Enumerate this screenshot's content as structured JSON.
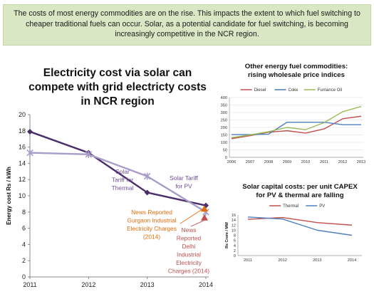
{
  "banner": {
    "text": "The costs of most energy commodities are on the rise. This impacts the extent to which fuel switching to cheaper traditional fuels can occur. Solar, as a potential candidate for fuel switching, is becoming increasingly competitive in the NCR region."
  },
  "chart_data": [
    {
      "type": "line",
      "title": [
        "Electricity cost via solar can",
        "compete with grid electricty costs",
        "in NCR region"
      ],
      "ylabel": "Energy cost Rs / kWh",
      "xlabel": "",
      "x": [
        "2011",
        "2012",
        "2013",
        "2014"
      ],
      "ylim": [
        0,
        20
      ],
      "yticks": [
        0,
        2,
        4,
        6,
        8,
        10,
        12,
        14,
        16,
        18,
        20
      ],
      "grid": false,
      "series": [
        {
          "key": "thermal",
          "values": [
            17.9,
            15.3,
            10.4,
            8.8
          ],
          "color": "#4a2d6b",
          "marker": "diamond"
        },
        {
          "key": "pv",
          "values": [
            15.3,
            15.1,
            12.4,
            8.0
          ],
          "color": "#a89cc8",
          "marker": "star"
        }
      ],
      "points": [
        {
          "key": "gurgaon",
          "x": "2014",
          "y": 8.4,
          "color": "#e46c0a",
          "marker": "triangle"
        },
        {
          "key": "delhi",
          "x": "2014",
          "y": 7.3,
          "color": "#c0504d",
          "marker": "triangle"
        }
      ],
      "annotations": [
        {
          "key": "solar_thermal",
          "lines": [
            "Solar",
            "Tariff for",
            "Thermal"
          ],
          "color": "#6f4a9e"
        },
        {
          "key": "solar_pv",
          "lines": [
            "Solar Tariff",
            "for PV"
          ],
          "color": "#6f4a9e"
        },
        {
          "key": "gurgaon",
          "lines": [
            "News Reported",
            "Gurgaon Industrial",
            "Electricity Charges",
            "(2014)"
          ],
          "color": "#e46c0a"
        },
        {
          "key": "delhi",
          "lines": [
            "News",
            "Reported",
            "Delhi",
            "Industrial",
            "Electricity",
            "Charges (2014)"
          ],
          "color": "#c0504d"
        }
      ]
    },
    {
      "type": "line",
      "title": [
        "Other energy fuel commodities:",
        "rising wholesale price indices"
      ],
      "x": [
        "2006",
        "2007",
        "2008",
        "2009",
        "2010",
        "2011",
        "2012",
        "2013"
      ],
      "ylim": [
        0,
        400
      ],
      "yticks": [
        0,
        50,
        100,
        150,
        200,
        250,
        300,
        350,
        400
      ],
      "grid": true,
      "legend": "top",
      "series": [
        {
          "name": "Diesel",
          "values": [
            125,
            145,
            168,
            178,
            162,
            190,
            258,
            275
          ],
          "color": "#c0504d"
        },
        {
          "name": "Coke",
          "values": [
            152,
            152,
            155,
            235,
            235,
            235,
            218,
            218
          ],
          "color": "#4f81bd"
        },
        {
          "name": "Furnance Oil",
          "values": [
            132,
            150,
            172,
            200,
            185,
            232,
            305,
            340
          ],
          "color": "#9bbb59"
        }
      ]
    },
    {
      "type": "line",
      "title": [
        "Solar capital costs: per unit CAPEX",
        "for PV & thermal are falling"
      ],
      "ylabel": "Rs Crore / MW",
      "x": [
        "2011",
        "2012",
        "2013",
        "2014"
      ],
      "ylim": [
        0,
        16
      ],
      "yticks": [
        0,
        2,
        4,
        6,
        8,
        10,
        12,
        14,
        16
      ],
      "grid": false,
      "legend": "top",
      "series": [
        {
          "name": "Thermal",
          "values": [
            14.3,
            15.0,
            13.0,
            12.0
          ],
          "color": "#c0504d"
        },
        {
          "name": "PV",
          "values": [
            15.2,
            14.4,
            10.0,
            8.0
          ],
          "color": "#4f81bd"
        }
      ]
    }
  ]
}
